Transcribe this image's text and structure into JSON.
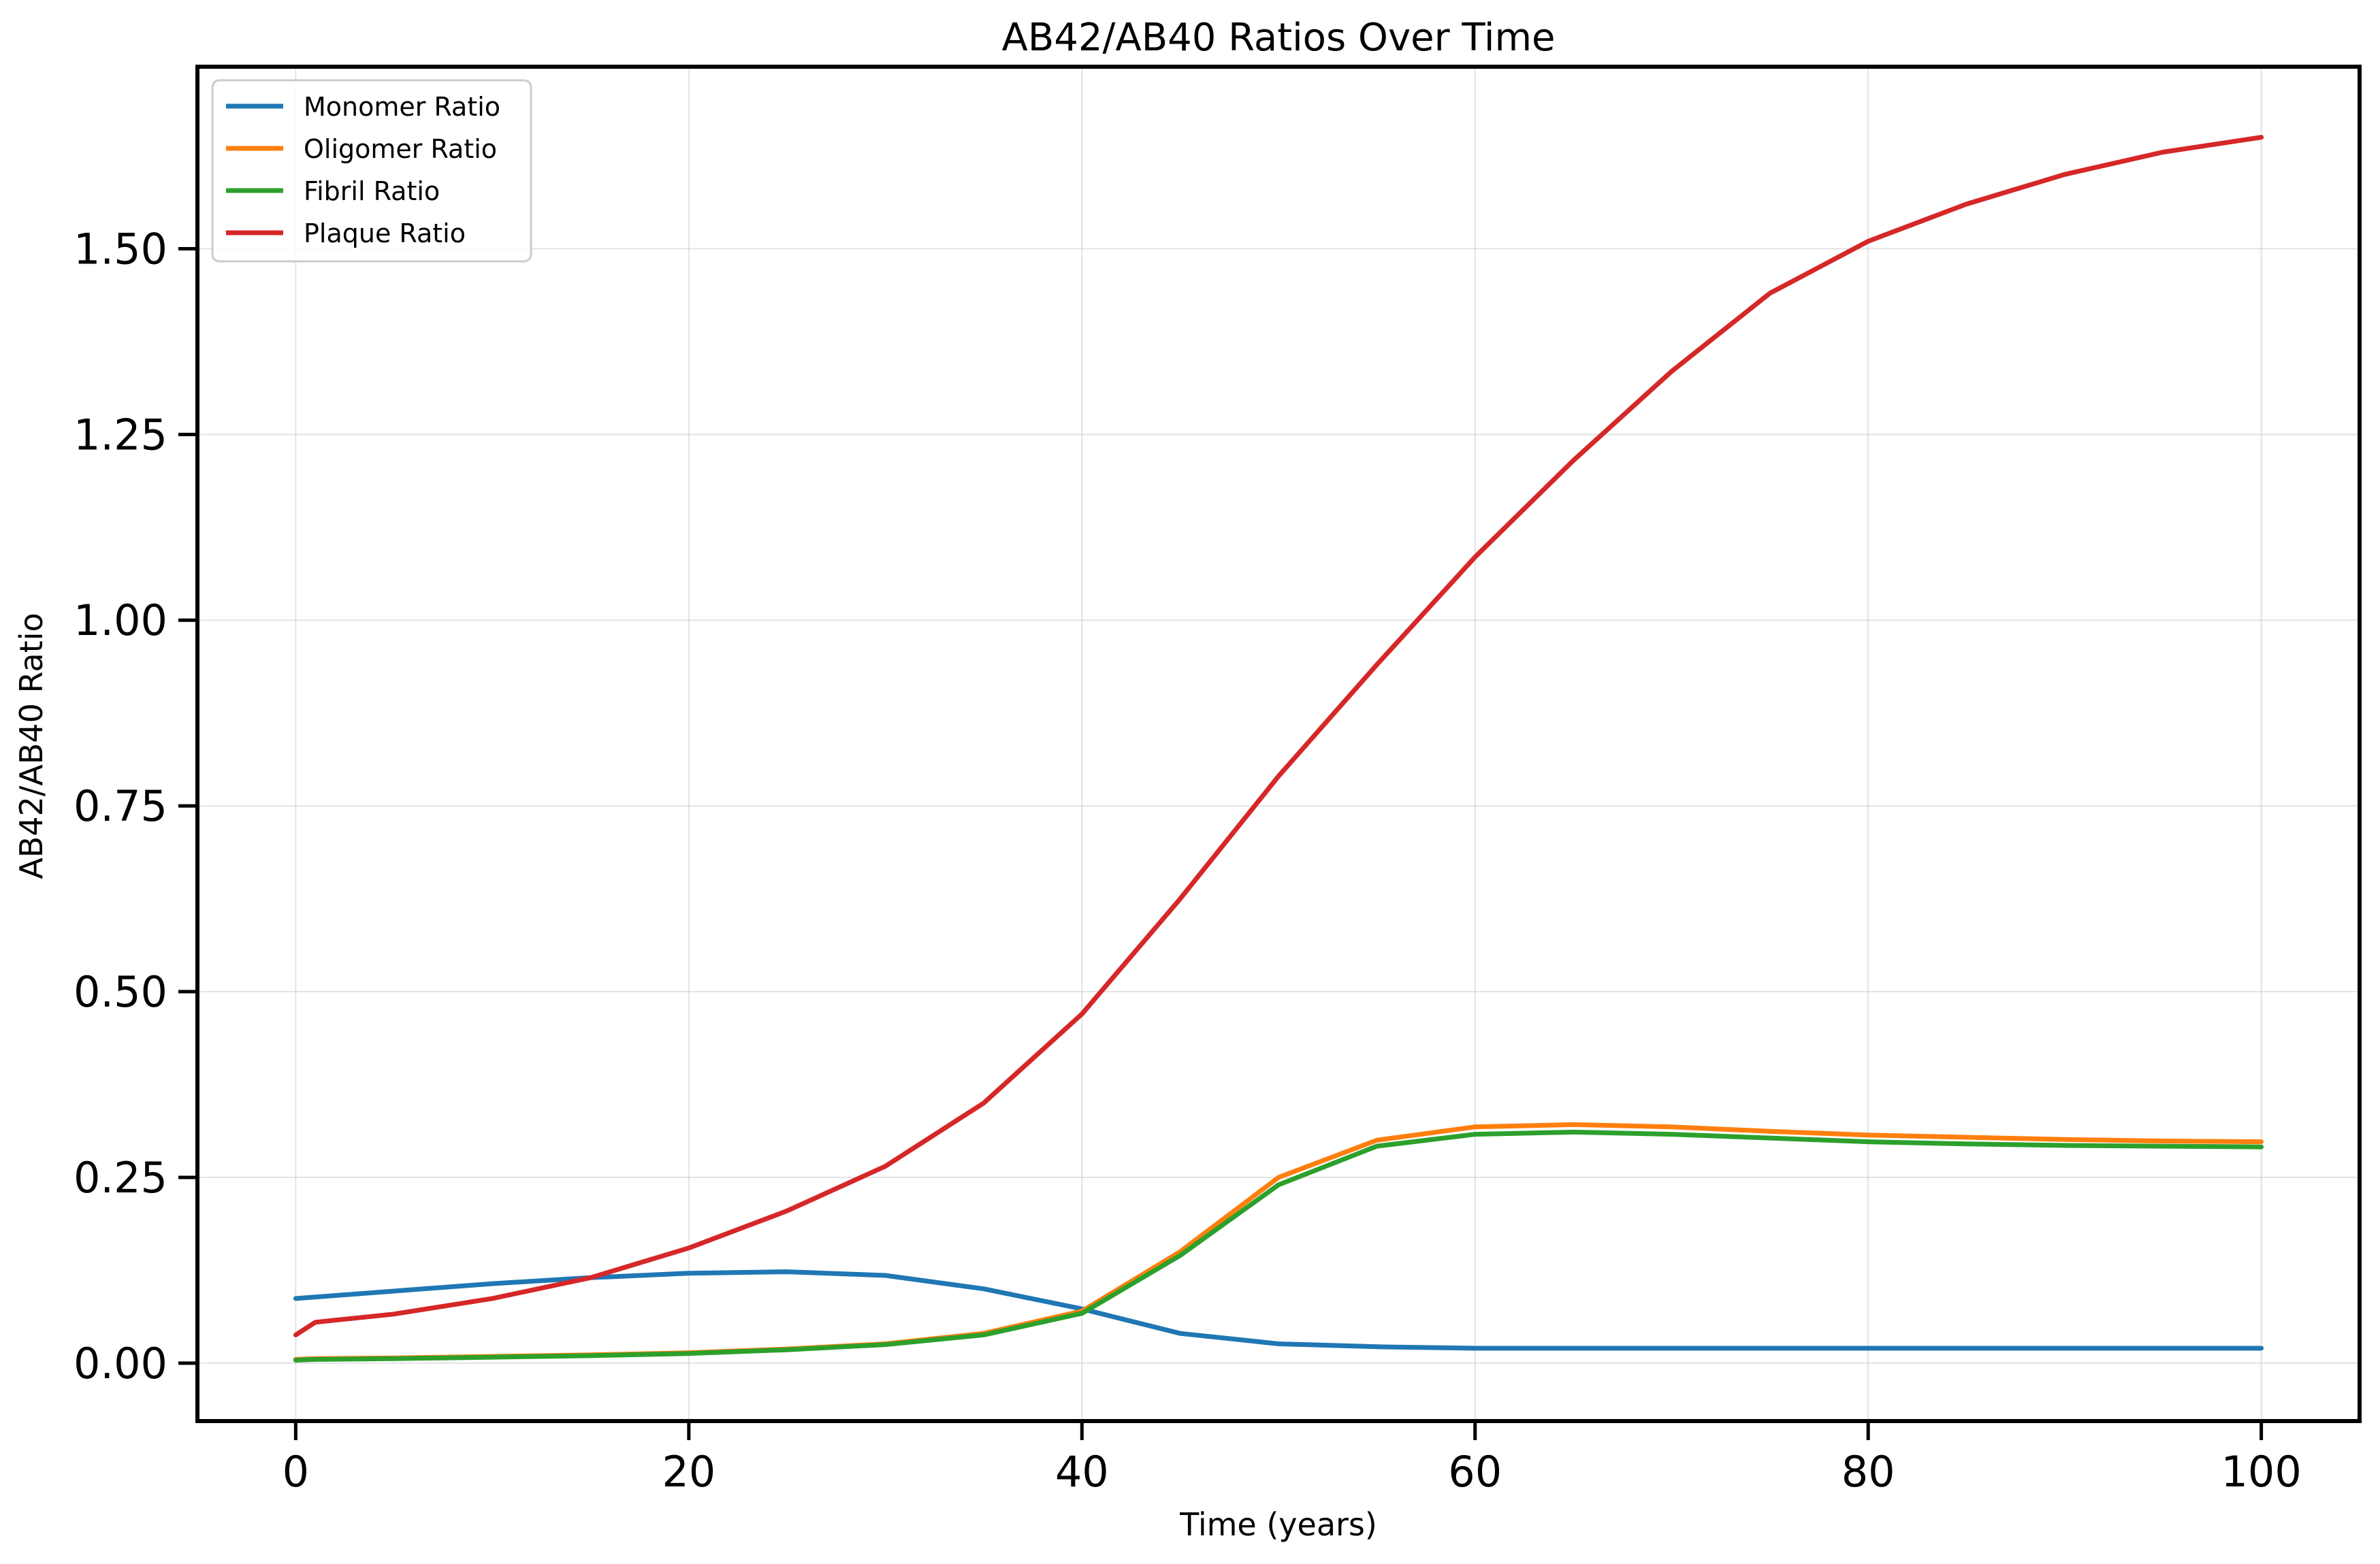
{
  "chart_data": {
    "type": "line",
    "title": "AB42/AB40 Ratios Over Time",
    "xlabel": "Time (years)",
    "ylabel": "AB42/AB40 Ratio",
    "xlim": [
      -5,
      105
    ],
    "ylim": [
      -0.078,
      1.745
    ],
    "xticks": [
      {
        "value": 0,
        "label": "0"
      },
      {
        "value": 20,
        "label": "20"
      },
      {
        "value": 40,
        "label": "40"
      },
      {
        "value": 60,
        "label": "60"
      },
      {
        "value": 80,
        "label": "80"
      },
      {
        "value": 100,
        "label": "100"
      }
    ],
    "yticks": [
      {
        "value": 0,
        "label": "0.00"
      },
      {
        "value": 0.25,
        "label": "0.25"
      },
      {
        "value": 0.5,
        "label": "0.50"
      },
      {
        "value": 0.75,
        "label": "0.75"
      },
      {
        "value": 1.0,
        "label": "1.00"
      },
      {
        "value": 1.25,
        "label": "1.25"
      },
      {
        "value": 1.5,
        "label": "1.50"
      }
    ],
    "grid": true,
    "legend_position": "top-left",
    "x": [
      0,
      1,
      5,
      10,
      15,
      20,
      25,
      30,
      35,
      40,
      45,
      50,
      55,
      60,
      65,
      70,
      75,
      80,
      85,
      90,
      95,
      100
    ],
    "series": [
      {
        "name": "Monomer Ratio",
        "color": "#1f77b4",
        "values": [
          0.087,
          0.089,
          0.097,
          0.107,
          0.115,
          0.121,
          0.123,
          0.118,
          0.1,
          0.073,
          0.04,
          0.026,
          0.022,
          0.02,
          0.02,
          0.02,
          0.02,
          0.02,
          0.02,
          0.02,
          0.02,
          0.02
        ]
      },
      {
        "name": "Oligomer Ratio",
        "color": "#ff7f0e",
        "values": [
          0.005,
          0.006,
          0.007,
          0.009,
          0.011,
          0.014,
          0.019,
          0.026,
          0.04,
          0.07,
          0.15,
          0.25,
          0.3,
          0.318,
          0.321,
          0.318,
          0.312,
          0.307,
          0.304,
          0.301,
          0.299,
          0.298
        ]
      },
      {
        "name": "Fibril Ratio",
        "color": "#2ca02c",
        "values": [
          0.004,
          0.005,
          0.006,
          0.008,
          0.01,
          0.013,
          0.018,
          0.025,
          0.038,
          0.067,
          0.145,
          0.24,
          0.292,
          0.308,
          0.311,
          0.308,
          0.303,
          0.298,
          0.295,
          0.293,
          0.292,
          0.291
        ]
      },
      {
        "name": "Plaque Ratio",
        "color": "#d62728",
        "values": [
          0.038,
          0.055,
          0.066,
          0.087,
          0.115,
          0.155,
          0.205,
          0.265,
          0.35,
          0.47,
          0.625,
          0.79,
          0.94,
          1.085,
          1.215,
          1.335,
          1.44,
          1.51,
          1.56,
          1.6,
          1.63,
          1.65
        ]
      }
    ]
  }
}
